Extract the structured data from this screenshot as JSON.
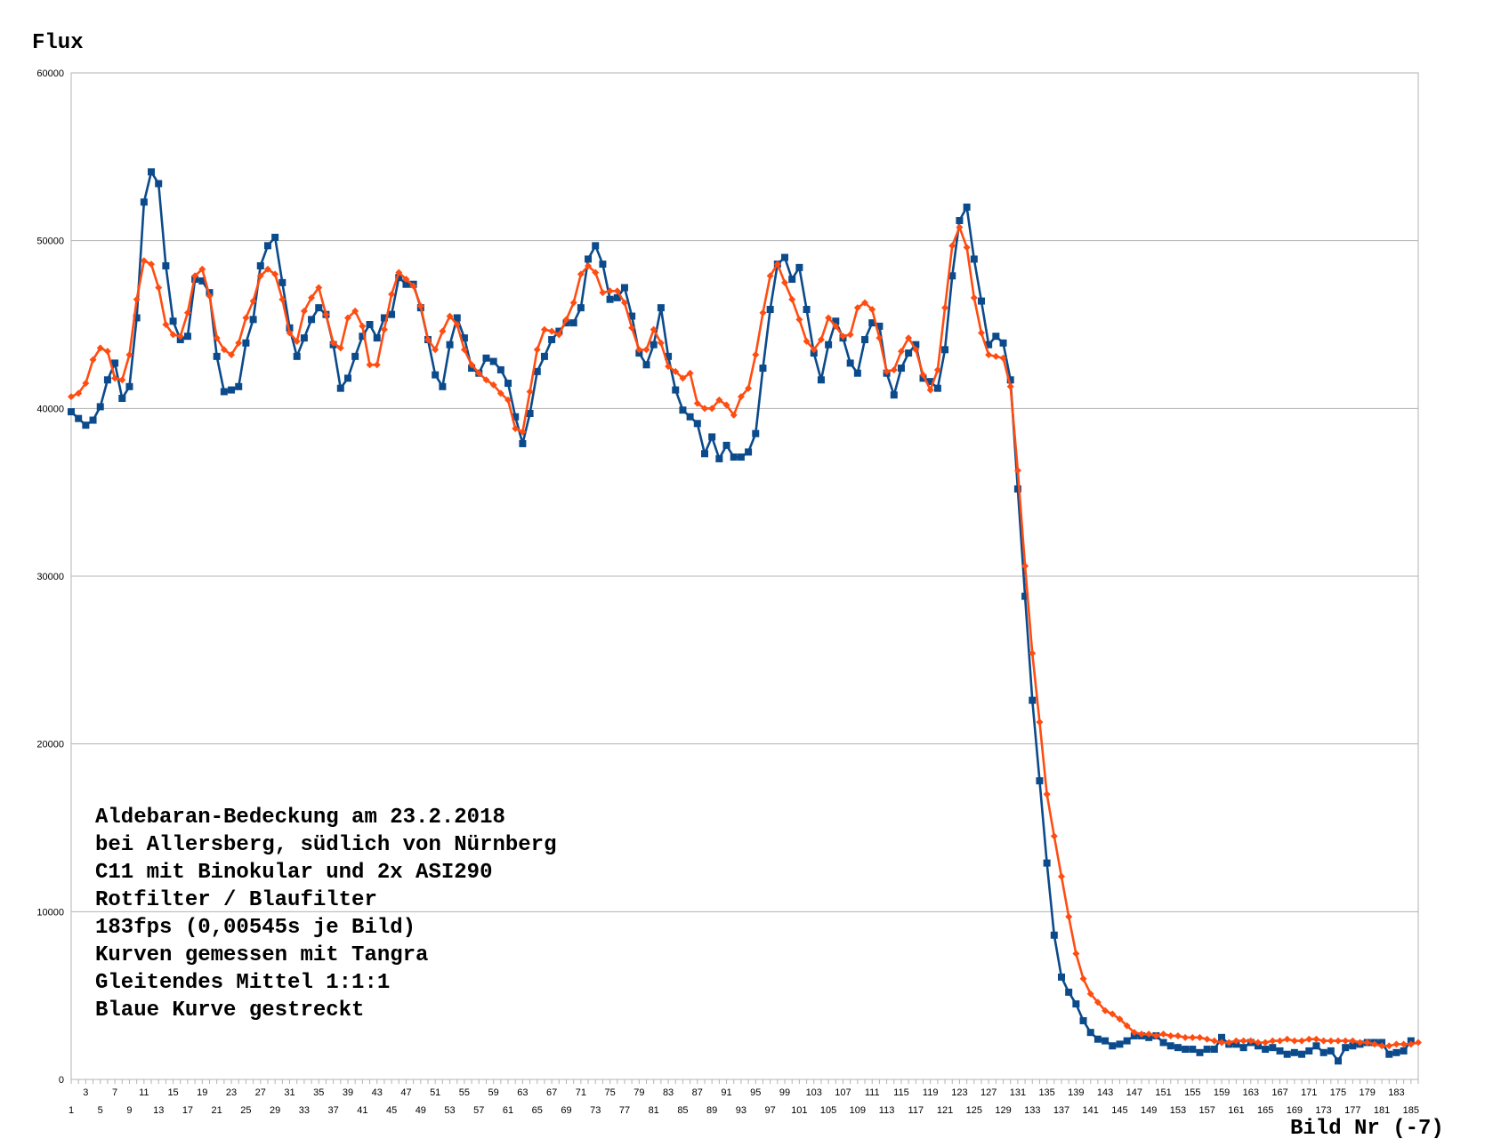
{
  "chart_data": {
    "type": "line",
    "ylabel": "Flux",
    "xlabel": "Bild Nr (-7)",
    "xlim": [
      1,
      186
    ],
    "ylim": [
      0,
      60000
    ],
    "y_ticks": [
      0,
      10000,
      20000,
      30000,
      40000,
      50000,
      60000
    ],
    "grid": "horizontal",
    "legend": "none",
    "annotation_lines": [
      "Aldebaran-Bedeckung am 23.2.2018",
      "bei Allersberg, südlich von Nürnberg",
      "C11 mit Binokular und 2x ASI290",
      "Rotfilter / Blaufilter",
      "183fps (0,00545s je Bild)",
      "Kurven gemessen mit Tangra",
      "Gleitendes Mittel 1:1:1",
      "Blaue Kurve gestreckt"
    ],
    "series": [
      {
        "color": "#0b4a8b",
        "marker": "square",
        "values": [
          39800,
          39400,
          39000,
          39300,
          40100,
          41700,
          42700,
          40600,
          41300,
          45400,
          52300,
          54100,
          53400,
          48500,
          45200,
          44100,
          44300,
          47700,
          47600,
          46900,
          43100,
          41000,
          41100,
          41300,
          43900,
          45300,
          48500,
          49700,
          50200,
          47500,
          44800,
          43100,
          44200,
          45300,
          46000,
          45600,
          43800,
          41200,
          41800,
          43100,
          44300,
          45000,
          44200,
          45400,
          45600,
          47800,
          47400,
          47400,
          46000,
          44100,
          42000,
          41300,
          43800,
          45400,
          44200,
          42400,
          42100,
          43000,
          42800,
          42300,
          41500,
          39500,
          37900,
          39700,
          42200,
          43100,
          44100,
          44600,
          45100,
          45100,
          46000,
          48900,
          49700,
          48600,
          46500,
          46600,
          47200,
          45500,
          43300,
          42600,
          43800,
          46000,
          43100,
          41100,
          39900,
          39500,
          39100,
          37300,
          38300,
          37000,
          37800,
          37100,
          37100,
          37400,
          38500,
          42400,
          45900,
          48600,
          49000,
          47700,
          48400,
          45900,
          43300,
          41700,
          43800,
          45200,
          44200,
          42700,
          42100,
          44100,
          45100,
          44900,
          42100,
          40800,
          42400,
          43300,
          43800,
          41800,
          41600,
          41200,
          43500,
          47900,
          51200,
          52000,
          48900,
          46400,
          43800,
          44300,
          43900,
          41700,
          35200,
          28800,
          22600,
          17800,
          12900,
          8600,
          6100,
          5200,
          4500,
          3500,
          2800,
          2400,
          2300,
          2000,
          2100,
          2300,
          2600,
          2600,
          2500,
          2600,
          2200,
          2000,
          1900,
          1800,
          1800,
          1600,
          1800,
          1800,
          2500,
          2100,
          2100,
          1900,
          2200,
          2000,
          1800,
          1900,
          1700,
          1500,
          1600,
          1500,
          1700,
          2000,
          1600,
          1700,
          1100,
          1900,
          2000,
          2100,
          2200,
          2200,
          2200,
          1500,
          1600,
          1700,
          2300
        ]
      },
      {
        "color": "#ff4d12",
        "marker": "diamond",
        "values": [
          40700,
          40900,
          41500,
          42900,
          43600,
          43400,
          41800,
          41700,
          43200,
          46500,
          48800,
          48600,
          47200,
          45000,
          44400,
          44300,
          45700,
          47900,
          48300,
          46700,
          44200,
          43500,
          43200,
          43900,
          45400,
          46400,
          47900,
          48300,
          48000,
          46500,
          44500,
          44000,
          45800,
          46600,
          47200,
          45600,
          43900,
          43600,
          45400,
          45800,
          44900,
          42600,
          42600,
          44700,
          46800,
          48100,
          47700,
          47300,
          46100,
          44100,
          43500,
          44600,
          45500,
          45000,
          43500,
          42600,
          42100,
          41700,
          41400,
          40900,
          40500,
          38800,
          38600,
          41000,
          43500,
          44700,
          44600,
          44400,
          45300,
          46300,
          48000,
          48500,
          48100,
          46900,
          47000,
          47000,
          46300,
          44800,
          43500,
          43500,
          44700,
          43900,
          42500,
          42200,
          41800,
          42100,
          40300,
          40000,
          40000,
          40500,
          40200,
          39600,
          40700,
          41200,
          43200,
          45700,
          47900,
          48600,
          47500,
          46500,
          45300,
          44000,
          43500,
          44100,
          45400,
          44900,
          44300,
          44400,
          46000,
          46300,
          45900,
          44200,
          42200,
          42300,
          43400,
          44200,
          43500,
          42000,
          41100,
          42300,
          46000,
          49700,
          50800,
          49600,
          46600,
          44500,
          43200,
          43100,
          43000,
          41300,
          36300,
          30600,
          25400,
          21300,
          17000,
          14500,
          12100,
          9700,
          7500,
          6000,
          5100,
          4600,
          4100,
          3900,
          3600,
          3200,
          2800,
          2700,
          2700,
          2600,
          2700,
          2600,
          2600,
          2500,
          2500,
          2500,
          2400,
          2300,
          2200,
          2200,
          2300,
          2300,
          2300,
          2200,
          2200,
          2300,
          2300,
          2400,
          2300,
          2300,
          2400,
          2400,
          2300,
          2300,
          2300,
          2300,
          2300,
          2200,
          2200,
          2100,
          2000,
          2000,
          2100,
          2100,
          2100,
          2200
        ]
      }
    ],
    "x_ticks_lower": [
      1,
      5,
      9,
      13,
      17,
      21,
      25,
      29,
      33,
      37,
      41,
      45,
      49,
      53,
      57,
      61,
      65,
      69,
      73,
      77,
      81,
      85,
      89,
      93,
      97,
      101,
      105,
      109,
      113,
      117,
      121,
      125,
      129,
      133,
      137,
      141,
      145,
      149,
      153,
      157,
      161,
      165,
      169,
      173,
      177,
      181,
      185
    ],
    "x_ticks_upper": [
      3,
      7,
      11,
      15,
      19,
      23,
      27,
      31,
      35,
      39,
      43,
      47,
      51,
      55,
      59,
      63,
      67,
      71,
      75,
      79,
      83,
      87,
      91,
      95,
      99,
      103,
      107,
      111,
      115,
      119,
      123,
      127,
      131,
      135,
      139,
      143,
      147,
      151,
      155,
      159,
      163,
      167,
      171,
      175,
      179,
      183
    ]
  }
}
